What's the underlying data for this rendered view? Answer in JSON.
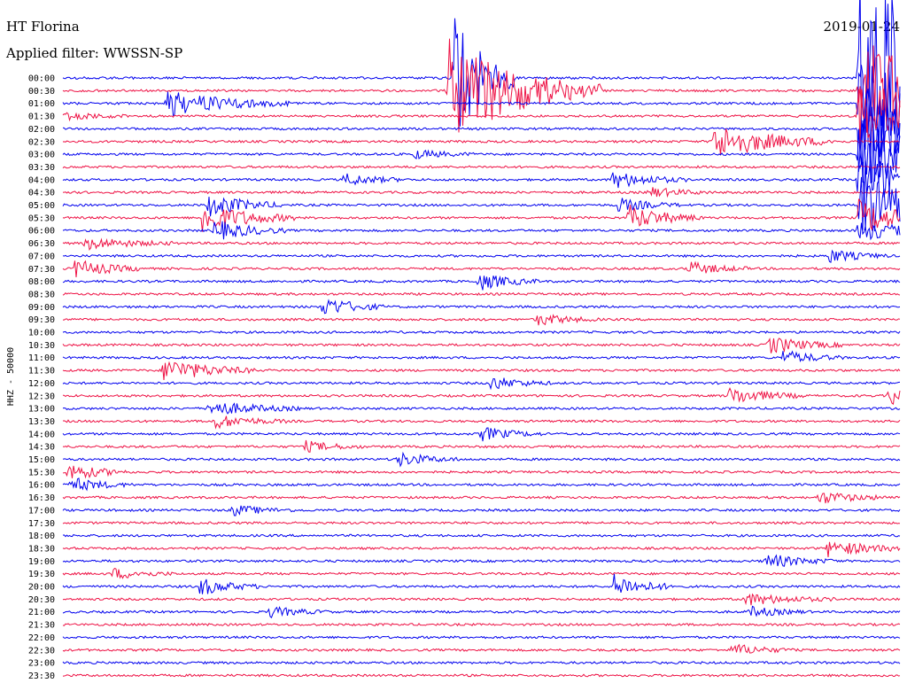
{
  "header": {
    "station": "HT Florina",
    "filter": "Applied filter: WWSSN-SP",
    "date": "2019-01-24"
  },
  "chart_data": {
    "type": "line",
    "title": "HT Florina",
    "subtitle": "Applied filter: WWSSN-SP",
    "date": "2019-01-24",
    "ylabel": "HHZ - 50000",
    "xlabel": "",
    "trace_interval_minutes": 30,
    "trace_colors": [
      "#0000ee",
      "#ee1144"
    ],
    "rows": [
      "00:00",
      "00:30",
      "01:00",
      "01:30",
      "02:00",
      "02:30",
      "03:00",
      "03:30",
      "04:00",
      "04:30",
      "05:00",
      "05:30",
      "06:00",
      "06:30",
      "07:00",
      "07:30",
      "08:00",
      "08:30",
      "09:00",
      "09:30",
      "10:00",
      "10:30",
      "11:00",
      "11:30",
      "12:00",
      "12:30",
      "13:00",
      "13:30",
      "14:00",
      "14:30",
      "15:00",
      "15:30",
      "16:00",
      "16:30",
      "17:00",
      "17:30",
      "18:00",
      "18:30",
      "19:00",
      "19:30",
      "20:00",
      "20:30",
      "21:00",
      "21:30",
      "22:00",
      "22:30",
      "23:00",
      "23:30"
    ],
    "events": [
      {
        "row": 0,
        "minute": 14.0,
        "amp": 80,
        "dur": 1.0
      },
      {
        "row": 0,
        "minute": 28.5,
        "amp": 130,
        "dur": 4.0
      },
      {
        "row": 1,
        "minute": 13.8,
        "amp": 60,
        "dur": 2.5
      },
      {
        "row": 1,
        "minute": 28.5,
        "amp": 60,
        "dur": 3.0
      },
      {
        "row": 2,
        "minute": 3.7,
        "amp": 14,
        "dur": 2.0
      },
      {
        "row": 2,
        "minute": 28.5,
        "amp": 50,
        "dur": 4.0
      },
      {
        "row": 3,
        "minute": 0.1,
        "amp": 4,
        "dur": 1.0
      },
      {
        "row": 3,
        "minute": 28.5,
        "amp": 40,
        "dur": 3.5
      },
      {
        "row": 4,
        "minute": 28.5,
        "amp": 50,
        "dur": 3.0
      },
      {
        "row": 5,
        "minute": 23.3,
        "amp": 20,
        "dur": 2.0
      },
      {
        "row": 6,
        "minute": 12.6,
        "amp": 5,
        "dur": 1.0
      },
      {
        "row": 6,
        "minute": 28.5,
        "amp": 40,
        "dur": 2.5
      },
      {
        "row": 8,
        "minute": 10.1,
        "amp": 7,
        "dur": 1.0
      },
      {
        "row": 8,
        "minute": 19.7,
        "amp": 10,
        "dur": 1.2
      },
      {
        "row": 8,
        "minute": 28.5,
        "amp": 35,
        "dur": 2.0
      },
      {
        "row": 9,
        "minute": 21.0,
        "amp": 6,
        "dur": 1.0
      },
      {
        "row": 10,
        "minute": 5.2,
        "amp": 14,
        "dur": 1.2
      },
      {
        "row": 10,
        "minute": 19.9,
        "amp": 8,
        "dur": 1.0
      },
      {
        "row": 10,
        "minute": 28.5,
        "amp": 40,
        "dur": 2.0
      },
      {
        "row": 11,
        "minute": 5.0,
        "amp": 18,
        "dur": 1.5
      },
      {
        "row": 11,
        "minute": 20.3,
        "amp": 14,
        "dur": 1.2
      },
      {
        "row": 11,
        "minute": 28.5,
        "amp": 20,
        "dur": 1.5
      },
      {
        "row": 12,
        "minute": 5.4,
        "amp": 12,
        "dur": 1.2
      },
      {
        "row": 12,
        "minute": 28.5,
        "amp": 12,
        "dur": 1.5
      },
      {
        "row": 13,
        "minute": 0.8,
        "amp": 7,
        "dur": 1.5
      },
      {
        "row": 14,
        "minute": 27.4,
        "amp": 8,
        "dur": 1.0
      },
      {
        "row": 15,
        "minute": 0.4,
        "amp": 10,
        "dur": 1.2
      },
      {
        "row": 15,
        "minute": 22.4,
        "amp": 8,
        "dur": 1.0
      },
      {
        "row": 16,
        "minute": 14.9,
        "amp": 10,
        "dur": 1.0
      },
      {
        "row": 18,
        "minute": 9.3,
        "amp": 12,
        "dur": 1.0
      },
      {
        "row": 19,
        "minute": 17.0,
        "amp": 7,
        "dur": 1.0
      },
      {
        "row": 21,
        "minute": 25.3,
        "amp": 10,
        "dur": 1.2
      },
      {
        "row": 22,
        "minute": 25.8,
        "amp": 8,
        "dur": 1.0
      },
      {
        "row": 23,
        "minute": 3.6,
        "amp": 14,
        "dur": 1.5
      },
      {
        "row": 24,
        "minute": 15.3,
        "amp": 8,
        "dur": 1.0
      },
      {
        "row": 25,
        "minute": 23.9,
        "amp": 10,
        "dur": 1.2
      },
      {
        "row": 25,
        "minute": 29.6,
        "amp": 10,
        "dur": 1.0
      },
      {
        "row": 26,
        "minute": 5.2,
        "amp": 9,
        "dur": 1.5
      },
      {
        "row": 27,
        "minute": 5.4,
        "amp": 8,
        "dur": 1.2
      },
      {
        "row": 28,
        "minute": 15.0,
        "amp": 8,
        "dur": 1.0
      },
      {
        "row": 29,
        "minute": 8.7,
        "amp": 6,
        "dur": 1.0
      },
      {
        "row": 30,
        "minute": 12.0,
        "amp": 8,
        "dur": 1.0
      },
      {
        "row": 31,
        "minute": 0.2,
        "amp": 10,
        "dur": 1.0
      },
      {
        "row": 32,
        "minute": 0.3,
        "amp": 8,
        "dur": 1.0
      },
      {
        "row": 33,
        "minute": 27.1,
        "amp": 7,
        "dur": 1.2
      },
      {
        "row": 34,
        "minute": 6.1,
        "amp": 6,
        "dur": 1.0
      },
      {
        "row": 37,
        "minute": 27.4,
        "amp": 9,
        "dur": 1.5
      },
      {
        "row": 38,
        "minute": 25.2,
        "amp": 8,
        "dur": 1.2
      },
      {
        "row": 39,
        "minute": 1.8,
        "amp": 6,
        "dur": 1.0
      },
      {
        "row": 40,
        "minute": 4.9,
        "amp": 10,
        "dur": 1.0
      },
      {
        "row": 40,
        "minute": 19.7,
        "amp": 14,
        "dur": 1.0
      },
      {
        "row": 41,
        "minute": 24.4,
        "amp": 7,
        "dur": 1.5
      },
      {
        "row": 42,
        "minute": 7.4,
        "amp": 6,
        "dur": 1.0
      },
      {
        "row": 42,
        "minute": 24.6,
        "amp": 6,
        "dur": 1.0
      },
      {
        "row": 45,
        "minute": 24.0,
        "amp": 7,
        "dur": 1.0
      }
    ]
  }
}
